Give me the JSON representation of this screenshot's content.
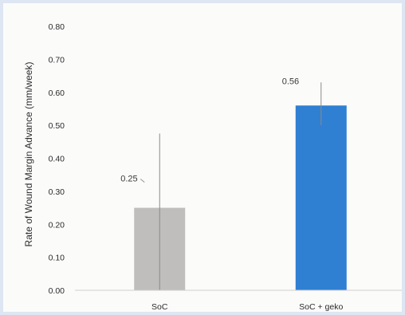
{
  "chart_data": {
    "type": "bar",
    "title": "",
    "xlabel": "",
    "ylabel": "Rate of Wound Margin Advance (mm/week)",
    "categories": [
      "SoC",
      "SoC + geko"
    ],
    "values": [
      0.25,
      0.56
    ],
    "error_upper": [
      0.475,
      0.63
    ],
    "error_lower": [
      0.0,
      0.5
    ],
    "data_labels": [
      "0.25",
      "0.56"
    ],
    "ylim": [
      0,
      0.8
    ],
    "yticks": [
      "0.00",
      "0.10",
      "0.20",
      "0.30",
      "0.40",
      "0.50",
      "0.60",
      "0.70",
      "0.80"
    ],
    "grid": false,
    "colors": [
      "#bfbebc",
      "#2f7fd3"
    ]
  }
}
